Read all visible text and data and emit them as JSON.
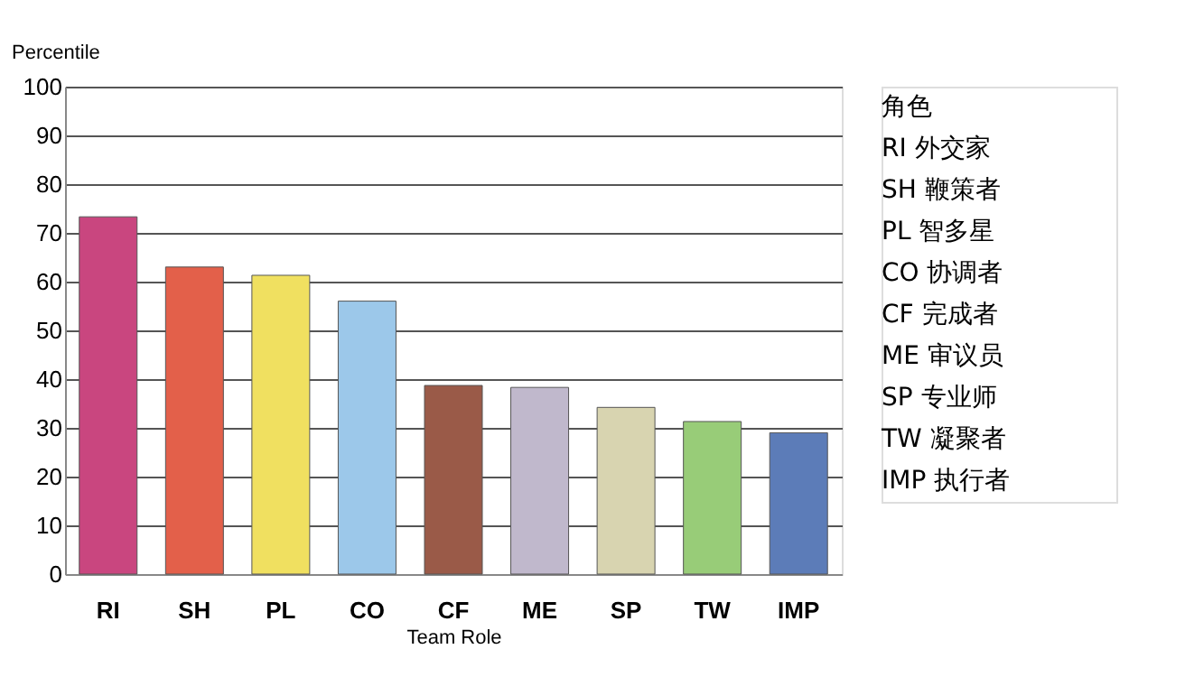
{
  "chart_data": {
    "type": "bar",
    "xlabel": "Team Role",
    "ylabel": "Percentile",
    "categories": [
      "RI",
      "SH",
      "PL",
      "CO",
      "CF",
      "ME",
      "SP",
      "TW",
      "IMP"
    ],
    "values": [
      73.3,
      63,
      61.3,
      56,
      38.7,
      38.3,
      34.2,
      31.3,
      29
    ],
    "colors": [
      "#c9467f",
      "#e3604a",
      "#f0e060",
      "#9cc8ea",
      "#9a5a48",
      "#c0b8cc",
      "#d8d4b0",
      "#98cc78",
      "#5c7cb8"
    ],
    "ylim": [
      0,
      100
    ],
    "yticks": [
      0,
      10,
      20,
      30,
      40,
      50,
      60,
      70,
      80,
      90,
      100
    ],
    "grid": "y",
    "annotations": [
      "角色",
      "RI  外交家",
      "SH  鞭策者",
      "PL  智多星",
      "CO  协调者",
      "CF  完成者",
      "ME  审议员",
      "SP  专业师",
      "TW  凝聚者",
      "IMP 执行者"
    ]
  }
}
